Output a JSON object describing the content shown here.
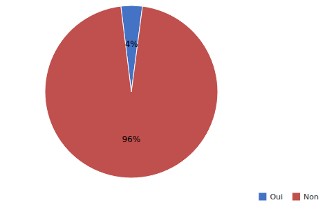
{
  "chart_data": {
    "type": "pie",
    "categories": [
      "Oui",
      "Non"
    ],
    "values": [
      4,
      96
    ],
    "value_labels": [
      "4%",
      "96%"
    ],
    "colors": [
      "#4472C4",
      "#C0504D"
    ],
    "data_labels": true,
    "legend": "lower right"
  }
}
